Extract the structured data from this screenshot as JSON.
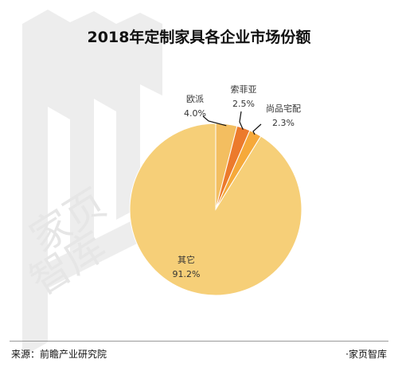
{
  "title": "2018年定制家具各企业市场份额",
  "footer": {
    "source": "来源：前瞻产业研究院",
    "brand": "·家页智库"
  },
  "watermark": {
    "text_line1": "家页",
    "text_line2": "智库"
  },
  "colors": {
    "background": "#ffffff",
    "watermark": "#ededed",
    "title": "#111111",
    "leader_line": "#111111",
    "slice_outline": "#ffffff"
  },
  "chart_data": {
    "type": "pie",
    "title": "2018年定制家具各企业市场份额",
    "unit": "%",
    "start_angle_deg": 0,
    "direction": "clockwise",
    "slices": [
      {
        "name": "欧派",
        "value": 4.0,
        "label": "4.0%",
        "color": "#f3be60"
      },
      {
        "name": "索菲亚",
        "value": 2.5,
        "label": "2.5%",
        "color": "#ec7a2c"
      },
      {
        "name": "尚品宅配",
        "value": 2.3,
        "label": "2.3%",
        "color": "#f6a93a"
      },
      {
        "name": "其它",
        "value": 91.2,
        "label": "91.2%",
        "color": "#f6cf78"
      }
    ]
  }
}
